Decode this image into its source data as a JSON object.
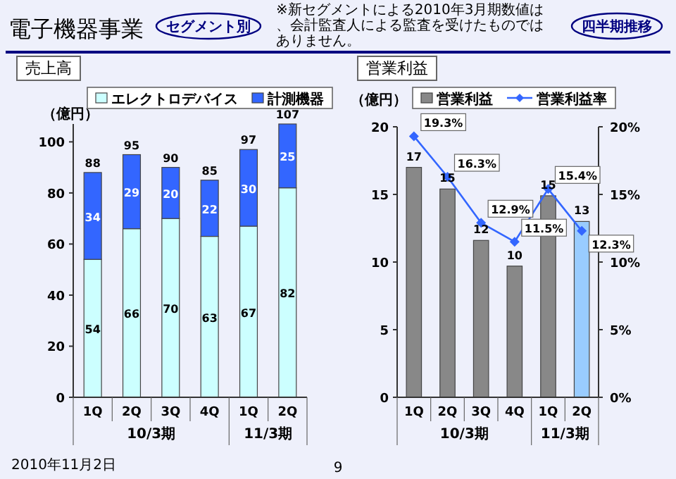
{
  "chart_data": [
    {
      "type": "other",
      "title": "電子機器事業",
      "annotations": [
        "セグメント別",
        "※新セグメントによる2010年3月期数値は、会計監査人による監査を受けたものではありません。",
        "四半期推移",
        "2010年11月2日",
        "9"
      ]
    },
    {
      "type": "bar",
      "title": "売上高",
      "ylabel": "（億円）",
      "stacked": true,
      "data_labels": true,
      "legend": "top",
      "categories": [
        "1Q",
        "2Q",
        "3Q",
        "4Q",
        "1Q",
        "2Q"
      ],
      "series": [
        {
          "name": "エレクトロデバイス",
          "color": "#ccffff",
          "values": [
            54,
            66,
            70,
            63,
            67,
            82
          ]
        },
        {
          "name": "計測機器",
          "color": "#3366ff",
          "values": [
            34,
            29,
            20,
            22,
            30,
            25
          ]
        }
      ],
      "totals": [
        "88",
        "95",
        "90",
        "85",
        "97",
        "107"
      ],
      "ylim": [
        0,
        107
      ],
      "yticks": [
        0,
        20,
        40,
        60,
        80,
        100
      ],
      "annotations": [
        "10/3期",
        "11/3期"
      ]
    },
    {
      "type": "bar",
      "title": "営業利益",
      "ylabel": "（億円）",
      "legend": "top",
      "categories": [
        "1Q",
        "2Q",
        "3Q",
        "4Q",
        "1Q",
        "2Q"
      ],
      "series": [
        {
          "name": "営業利益",
          "color": "#888888",
          "colors": [
            "#888888",
            "#888888",
            "#888888",
            "#888888",
            "#888888",
            "#99ccff"
          ],
          "values": [
            17.0,
            15.4,
            11.6,
            9.7,
            14.9,
            13.0
          ],
          "value_labels": [
            "17",
            "15",
            "12",
            "10",
            "15",
            "13"
          ]
        },
        {
          "name": "営業利益率",
          "type": "line",
          "axis": "y2",
          "marker": "diamond",
          "color": "#3366ff",
          "values": [
            19.3,
            16.3,
            12.9,
            11.5,
            15.4,
            12.3
          ],
          "value_labels": [
            "19.3%",
            "16.3%",
            "12.9%",
            "11.5%",
            "15.4%",
            "12.3%"
          ]
        }
      ],
      "ylim": [
        0,
        20
      ],
      "yticks": [
        0,
        5,
        10,
        15,
        20
      ],
      "y2lim": [
        0,
        20
      ],
      "y2ticks": [
        {
          "value": 0,
          "label": "0%"
        },
        {
          "value": 5,
          "label": "5%"
        },
        {
          "value": 10,
          "label": "10%"
        },
        {
          "value": 15,
          "label": "15%"
        },
        {
          "value": 20,
          "label": "20%"
        }
      ],
      "annotations": [
        "10/3期",
        "11/3期"
      ]
    }
  ]
}
